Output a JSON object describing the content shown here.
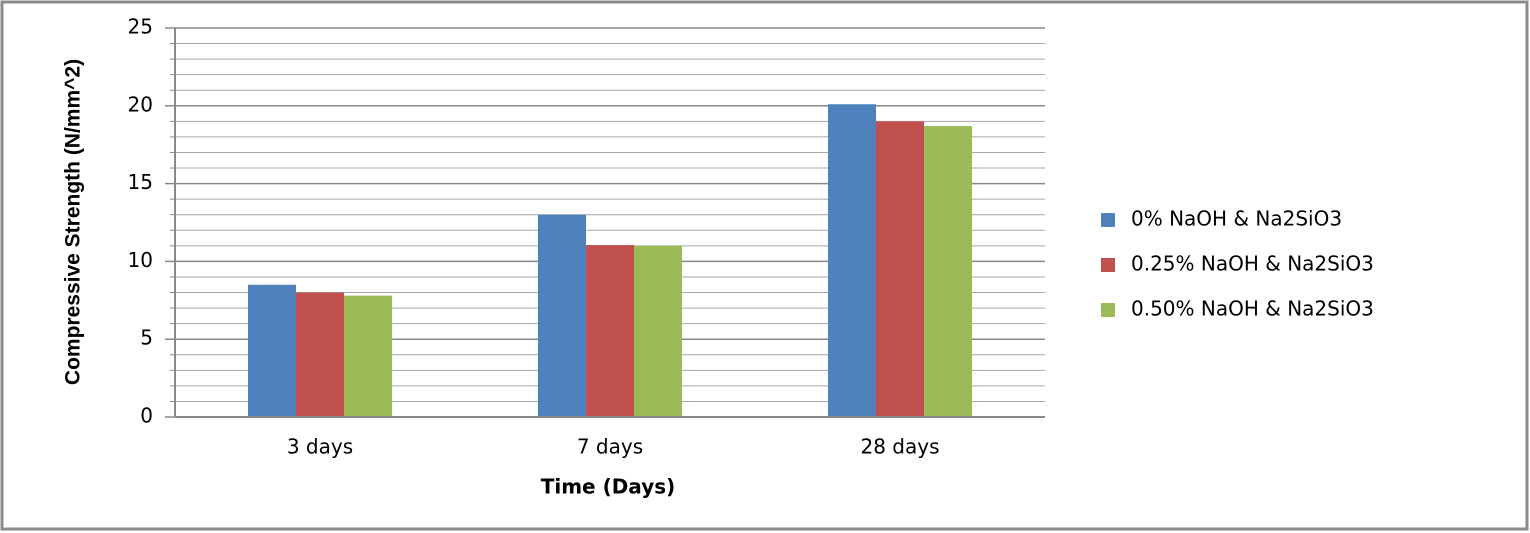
{
  "chart_data": {
    "type": "bar",
    "x_label": "Time (Days)",
    "y_label": "Compressive Strength (N/mm^2)",
    "categories": [
      "3 days",
      "7 days",
      "28 days"
    ],
    "series": [
      {
        "name": "0% NaOH & Na2SiO3",
        "color": "#4f81bd",
        "values": [
          8.5,
          13.0,
          20.1
        ]
      },
      {
        "name": "0.25% NaOH & Na2SiO3",
        "color": "#c0504d",
        "values": [
          8.0,
          11.05,
          19.0
        ]
      },
      {
        "name": "0.50% NaOH & Na2SiO3",
        "color": "#9bbb59",
        "values": [
          7.8,
          11.0,
          18.7
        ]
      }
    ],
    "ylim": [
      0,
      25
    ],
    "yticks": [
      0,
      5,
      10,
      15,
      20,
      25
    ],
    "minor_yticks": [
      1,
      2,
      3,
      4,
      6,
      7,
      8,
      9,
      11,
      12,
      13,
      14,
      16,
      17,
      18,
      19,
      21,
      22,
      23,
      24
    ],
    "grid": true,
    "legend": "right"
  }
}
